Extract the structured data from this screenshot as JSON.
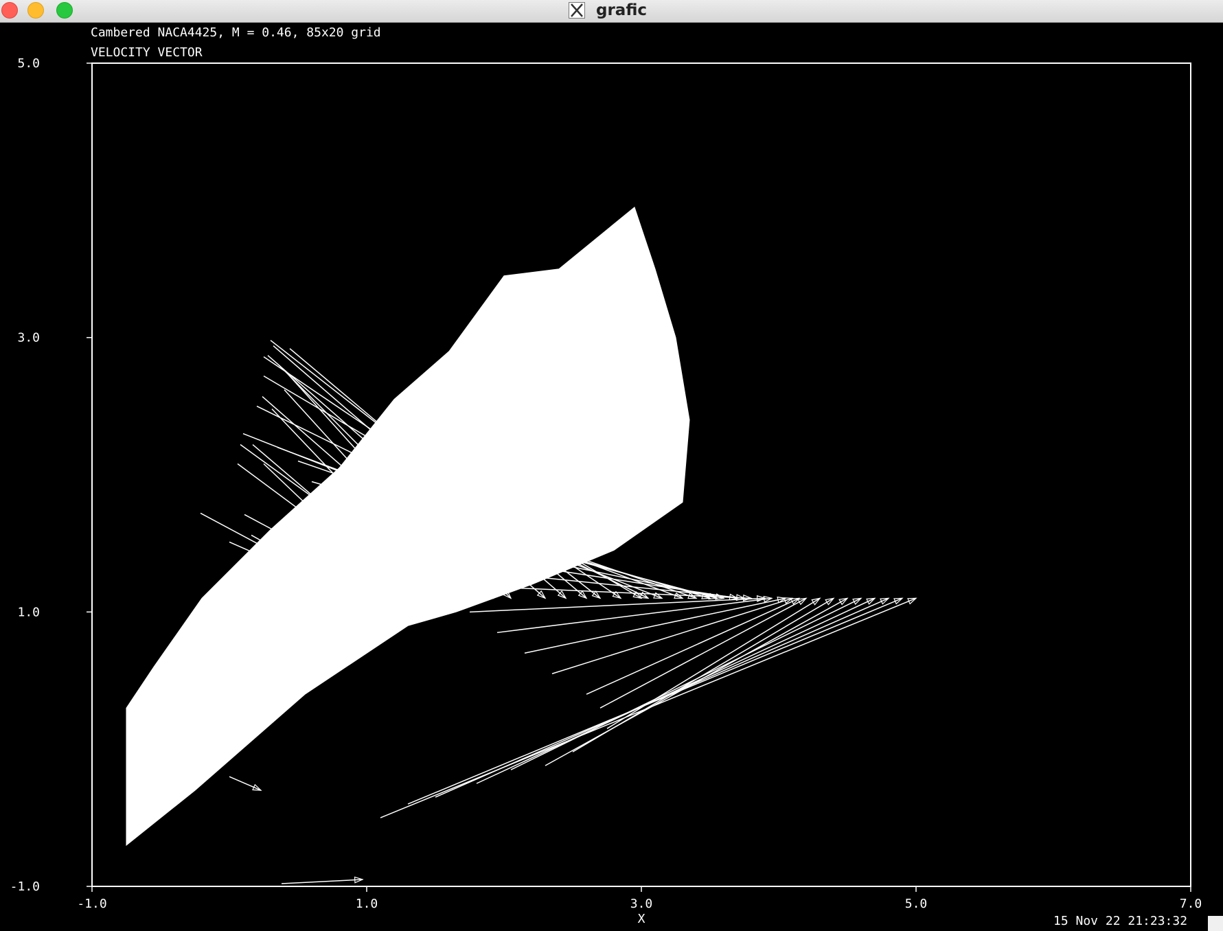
{
  "window": {
    "title": "grafic"
  },
  "header": {
    "line1": "Cambered NACA4425, M = 0.46, 85x20 grid",
    "line2": "VELOCITY VECTOR"
  },
  "footer": {
    "timestamp": "15 Nov 22 21:23:32"
  },
  "chart_data": {
    "type": "vector-field",
    "title": "Cambered NACA4425, M = 0.46, 85x20 grid",
    "subtitle": "VELOCITY VECTOR",
    "xlabel": "X",
    "ylabel": "",
    "xlim": [
      -1.0,
      7.0
    ],
    "ylim": [
      -1.0,
      5.0
    ],
    "x_ticks": [
      "-1.0",
      "1.0",
      "3.0",
      "5.0",
      "7.0"
    ],
    "y_ticks": [
      "-1.0",
      "1.0",
      "3.0",
      "5.0"
    ],
    "grid": false,
    "colors": {
      "background": "#000000",
      "foreground": "#ffffff"
    },
    "vectors": [
      [
        0.97,
        -0.95,
        0.38,
        -0.98
      ],
      [
        0.23,
        -0.3,
        0.0,
        -0.2
      ],
      [
        0.65,
        1.1,
        -0.16,
        0.2
      ],
      [
        0.93,
        1.1,
        0.0,
        1.51
      ],
      [
        0.98,
        1.1,
        0.16,
        1.56
      ],
      [
        1.1,
        1.1,
        0.21,
        1.38
      ],
      [
        0.95,
        1.1,
        -0.21,
        1.72
      ],
      [
        1.25,
        1.1,
        0.11,
        1.71
      ],
      [
        1.28,
        1.1,
        0.25,
        2.08
      ],
      [
        1.38,
        1.1,
        0.06,
        2.08
      ],
      [
        1.48,
        1.1,
        0.17,
        2.22
      ],
      [
        1.62,
        1.1,
        0.08,
        2.22
      ],
      [
        1.62,
        1.1,
        0.31,
        2.48
      ],
      [
        1.78,
        1.1,
        0.4,
        2.62
      ],
      [
        1.92,
        1.1,
        0.24,
        2.57
      ],
      [
        1.9,
        1.1,
        0.43,
        2.73
      ],
      [
        2.05,
        1.1,
        0.36,
        2.8
      ],
      [
        2.3,
        1.1,
        0.28,
        2.87
      ],
      [
        2.45,
        1.1,
        0.32,
        2.94
      ],
      [
        2.6,
        1.1,
        0.44,
        2.92
      ],
      [
        2.7,
        1.1,
        0.3,
        2.98
      ],
      [
        2.85,
        1.1,
        0.25,
        2.86
      ],
      [
        3.0,
        1.1,
        0.25,
        2.72
      ],
      [
        3.05,
        1.1,
        0.2,
        2.5
      ],
      [
        3.15,
        1.1,
        0.1,
        2.3
      ],
      [
        3.3,
        1.1,
        0.35,
        2.2
      ],
      [
        3.4,
        1.1,
        0.5,
        2.1
      ],
      [
        3.5,
        1.1,
        0.6,
        1.95
      ],
      [
        3.55,
        1.1,
        0.75,
        1.85
      ],
      [
        3.6,
        1.1,
        0.95,
        1.65
      ],
      [
        3.7,
        1.1,
        1.1,
        1.5
      ],
      [
        3.75,
        1.1,
        1.3,
        1.35
      ],
      [
        3.8,
        1.1,
        1.5,
        1.2
      ],
      [
        3.9,
        1.1,
        1.75,
        1.0
      ],
      [
        3.95,
        1.1,
        1.95,
        0.85
      ],
      [
        4.05,
        1.1,
        2.15,
        0.7
      ],
      [
        4.1,
        1.1,
        2.35,
        0.55
      ],
      [
        4.15,
        1.1,
        2.6,
        0.4
      ],
      [
        4.2,
        1.1,
        2.7,
        0.3
      ],
      [
        4.3,
        1.1,
        2.75,
        0.15
      ],
      [
        4.4,
        1.1,
        2.5,
        -0.02
      ],
      [
        4.5,
        1.1,
        2.3,
        -0.12
      ],
      [
        4.6,
        1.1,
        2.05,
        -0.15
      ],
      [
        4.7,
        1.1,
        1.8,
        -0.25
      ],
      [
        4.8,
        1.1,
        1.5,
        -0.35
      ],
      [
        4.9,
        1.1,
        1.3,
        -0.4
      ],
      [
        5.0,
        1.1,
        1.1,
        -0.5
      ]
    ]
  }
}
